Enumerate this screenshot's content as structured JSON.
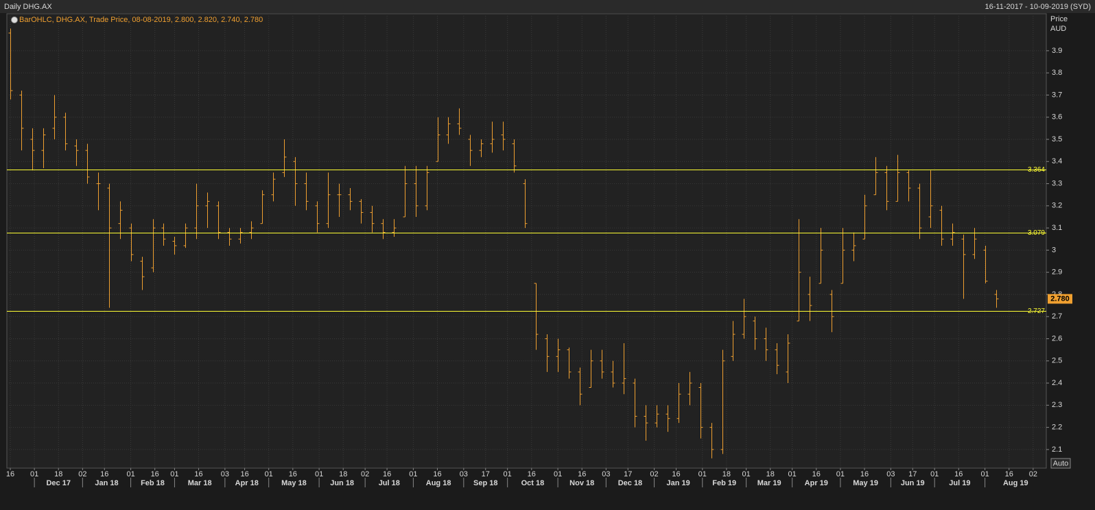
{
  "chart_data": {
    "type": "ohlc",
    "title": "Daily DHG.AX",
    "range_label": "16-11-2017 - 10-09-2019 (SYD)",
    "legend": "BarOHLC, DHG.AX, Trade Price, 08-08-2019, 2.800, 2.820, 2.740, 2.780",
    "ylabel": [
      "Price",
      "AUD"
    ],
    "button": "Auto",
    "color": "#f0a030",
    "ylim": [
      2.016,
      4.067
    ],
    "yticks": [
      2.1,
      2.2,
      2.3,
      2.4,
      2.5,
      2.6,
      2.7,
      2.8,
      2.9,
      3,
      3.1,
      3.2,
      3.3,
      3.4,
      3.5,
      3.6,
      3.7,
      3.8,
      3.9
    ],
    "grid": true,
    "xlim": [
      "16-11-2017",
      "10-09-2019"
    ],
    "xticks": [
      {
        "value": "16-11-2017",
        "label": "16"
      },
      {
        "value": "01-12-2017",
        "label": "01"
      },
      {
        "value": "18-12-2017",
        "label": "18"
      },
      {
        "value": "02-01-2018",
        "label": "02"
      },
      {
        "value": "16-01-2018",
        "label": "16"
      },
      {
        "value": "01-02-2018",
        "label": "01"
      },
      {
        "value": "16-02-2018",
        "label": "16"
      },
      {
        "value": "01-03-2018",
        "label": "01"
      },
      {
        "value": "16-03-2018",
        "label": "16"
      },
      {
        "value": "03-04-2018",
        "label": "03"
      },
      {
        "value": "16-04-2018",
        "label": "16"
      },
      {
        "value": "01-05-2018",
        "label": "01"
      },
      {
        "value": "16-05-2018",
        "label": "16"
      },
      {
        "value": "01-06-2018",
        "label": "01"
      },
      {
        "value": "18-06-2018",
        "label": "18"
      },
      {
        "value": "02-07-2018",
        "label": "02"
      },
      {
        "value": "16-07-2018",
        "label": "16"
      },
      {
        "value": "01-08-2018",
        "label": "01"
      },
      {
        "value": "16-08-2018",
        "label": "16"
      },
      {
        "value": "03-09-2018",
        "label": "03"
      },
      {
        "value": "17-09-2018",
        "label": "17"
      },
      {
        "value": "01-10-2018",
        "label": "01"
      },
      {
        "value": "16-10-2018",
        "label": "16"
      },
      {
        "value": "01-11-2018",
        "label": "01"
      },
      {
        "value": "16-11-2018",
        "label": "16"
      },
      {
        "value": "03-12-2018",
        "label": "03"
      },
      {
        "value": "17-12-2018",
        "label": "17"
      },
      {
        "value": "02-01-2019",
        "label": "02"
      },
      {
        "value": "16-01-2019",
        "label": "16"
      },
      {
        "value": "01-02-2019",
        "label": "01"
      },
      {
        "value": "18-02-2019",
        "label": "18"
      },
      {
        "value": "01-03-2019",
        "label": "01"
      },
      {
        "value": "18-03-2019",
        "label": "18"
      },
      {
        "value": "01-04-2019",
        "label": "01"
      },
      {
        "value": "16-04-2019",
        "label": "16"
      },
      {
        "value": "01-05-2019",
        "label": "01"
      },
      {
        "value": "16-05-2019",
        "label": "16"
      },
      {
        "value": "03-06-2019",
        "label": "03"
      },
      {
        "value": "17-06-2019",
        "label": "17"
      },
      {
        "value": "01-07-2019",
        "label": "01"
      },
      {
        "value": "16-07-2019",
        "label": "16"
      },
      {
        "value": "01-08-2019",
        "label": "01"
      },
      {
        "value": "16-08-2019",
        "label": "16"
      },
      {
        "value": "02-09-2019",
        "label": "02"
      }
    ],
    "month_ticks": [
      {
        "value": "01-12-2017",
        "label": "Dec 17"
      },
      {
        "value": "02-01-2018",
        "label": "Jan 18"
      },
      {
        "value": "01-02-2018",
        "label": "Feb 18"
      },
      {
        "value": "01-03-2018",
        "label": "Mar 18"
      },
      {
        "value": "03-04-2018",
        "label": "Apr 18"
      },
      {
        "value": "01-05-2018",
        "label": "May 18"
      },
      {
        "value": "01-06-2018",
        "label": "Jun 18"
      },
      {
        "value": "02-07-2018",
        "label": "Jul 18"
      },
      {
        "value": "01-08-2018",
        "label": "Aug 18"
      },
      {
        "value": "03-09-2018",
        "label": "Sep 18"
      },
      {
        "value": "01-10-2018",
        "label": "Oct 18"
      },
      {
        "value": "01-11-2018",
        "label": "Nov 18"
      },
      {
        "value": "03-12-2018",
        "label": "Dec 18"
      },
      {
        "value": "02-01-2019",
        "label": "Jan 19"
      },
      {
        "value": "01-02-2019",
        "label": "Feb 19"
      },
      {
        "value": "01-03-2019",
        "label": "Mar 19"
      },
      {
        "value": "01-04-2019",
        "label": "Apr 19"
      },
      {
        "value": "01-05-2019",
        "label": "May 19"
      },
      {
        "value": "03-06-2019",
        "label": "Jun 19"
      },
      {
        "value": "01-07-2019",
        "label": "Jul 19"
      },
      {
        "value": "01-08-2019",
        "label": "Aug 19"
      }
    ],
    "hlines": [
      {
        "value": 3.364,
        "color": "#ffff33"
      },
      {
        "value": 3.079,
        "color": "#ffff33"
      },
      {
        "value": 2.727,
        "color": "#ffff33"
      }
    ],
    "last_price": {
      "value": 2.78,
      "label": "2.780"
    },
    "x": [
      "16-11-2017",
      "23-11-2017",
      "30-11-2017",
      "07-12-2017",
      "14-12-2017",
      "21-12-2017",
      "28-12-2017",
      "04-01-2018",
      "11-01-2018",
      "18-01-2018",
      "25-01-2018",
      "01-02-2018",
      "08-02-2018",
      "15-02-2018",
      "22-02-2018",
      "01-03-2018",
      "08-03-2018",
      "15-03-2018",
      "22-03-2018",
      "29-03-2018",
      "05-04-2018",
      "12-04-2018",
      "19-04-2018",
      "26-04-2018",
      "03-05-2018",
      "10-05-2018",
      "17-05-2018",
      "24-05-2018",
      "31-05-2018",
      "07-06-2018",
      "14-06-2018",
      "21-06-2018",
      "28-06-2018",
      "05-07-2018",
      "12-07-2018",
      "19-07-2018",
      "26-07-2018",
      "02-08-2018",
      "09-08-2018",
      "16-08-2018",
      "23-08-2018",
      "30-08-2018",
      "06-09-2018",
      "13-09-2018",
      "20-09-2018",
      "27-09-2018",
      "04-10-2018",
      "11-10-2018",
      "18-10-2018",
      "25-10-2018",
      "01-11-2018",
      "08-11-2018",
      "15-11-2018",
      "22-11-2018",
      "29-11-2018",
      "06-12-2018",
      "13-12-2018",
      "20-12-2018",
      "27-12-2018",
      "03-01-2019",
      "10-01-2019",
      "17-01-2019",
      "24-01-2019",
      "31-01-2019",
      "07-02-2019",
      "14-02-2019",
      "21-02-2019",
      "28-02-2019",
      "07-03-2019",
      "14-03-2019",
      "21-03-2019",
      "28-03-2019",
      "04-04-2019",
      "11-04-2019",
      "18-04-2019",
      "25-04-2019",
      "02-05-2019",
      "09-05-2019",
      "16-05-2019",
      "23-05-2019",
      "30-05-2019",
      "06-06-2019",
      "13-06-2019",
      "20-06-2019",
      "27-06-2019",
      "04-07-2019",
      "11-07-2019",
      "18-07-2019",
      "25-07-2019",
      "01-08-2019",
      "08-08-2019"
    ],
    "open": [
      3.98,
      3.7,
      3.5,
      3.45,
      3.55,
      3.6,
      3.47,
      3.45,
      3.3,
      3.28,
      3.12,
      3.1,
      2.95,
      2.92,
      3.1,
      3.04,
      3.02,
      3.1,
      3.2,
      3.2,
      3.08,
      3.05,
      3.08,
      3.12,
      3.25,
      3.35,
      3.4,
      3.3,
      3.2,
      3.12,
      3.25,
      3.25,
      3.22,
      3.17,
      3.12,
      3.08,
      3.15,
      3.3,
      3.2,
      3.4,
      3.52,
      3.57,
      3.5,
      3.45,
      3.48,
      3.52,
      3.48,
      3.3,
      2.85,
      2.6,
      2.52,
      2.55,
      2.45,
      2.38,
      2.5,
      2.45,
      2.4,
      2.4,
      2.25,
      2.22,
      2.26,
      2.24,
      2.35,
      2.38,
      2.2,
      2.1,
      2.52,
      2.62,
      2.68,
      2.6,
      2.55,
      2.45,
      2.68,
      2.8,
      2.85,
      2.8,
      2.85,
      3.0,
      3.05,
      3.25,
      3.35,
      3.22,
      3.35,
      3.28,
      3.15,
      3.18,
      3.05,
      3.05,
      2.98,
      3.0,
      2.8
    ],
    "high": [
      4.0,
      3.72,
      3.55,
      3.55,
      3.7,
      3.62,
      3.5,
      3.48,
      3.35,
      3.3,
      3.22,
      3.12,
      2.97,
      3.14,
      3.12,
      3.06,
      3.12,
      3.3,
      3.26,
      3.22,
      3.1,
      3.1,
      3.13,
      3.27,
      3.35,
      3.5,
      3.42,
      3.35,
      3.22,
      3.35,
      3.3,
      3.28,
      3.23,
      3.2,
      3.14,
      3.14,
      3.38,
      3.38,
      3.38,
      3.6,
      3.6,
      3.64,
      3.52,
      3.5,
      3.58,
      3.58,
      3.5,
      3.32,
      2.85,
      2.62,
      2.6,
      2.56,
      2.47,
      2.55,
      2.55,
      2.5,
      2.58,
      2.42,
      2.3,
      2.3,
      2.3,
      2.4,
      2.45,
      2.4,
      2.22,
      2.55,
      2.68,
      2.78,
      2.7,
      2.65,
      2.58,
      2.62,
      3.14,
      2.88,
      3.1,
      2.82,
      3.1,
      3.08,
      3.25,
      3.42,
      3.38,
      3.43,
      3.36,
      3.3,
      3.36,
      3.2,
      3.12,
      3.07,
      3.1,
      3.02,
      2.82
    ],
    "low": [
      3.68,
      3.45,
      3.36,
      3.37,
      3.5,
      3.45,
      3.38,
      3.3,
      3.18,
      2.74,
      3.05,
      2.95,
      2.82,
      2.9,
      3.02,
      2.98,
      3.01,
      3.05,
      3.1,
      3.05,
      3.02,
      3.03,
      3.05,
      3.12,
      3.22,
      3.33,
      3.2,
      3.18,
      3.08,
      3.1,
      3.15,
      3.18,
      3.12,
      3.08,
      3.05,
      3.06,
      3.15,
      3.15,
      3.18,
      3.4,
      3.48,
      3.52,
      3.38,
      3.42,
      3.44,
      3.45,
      3.35,
      3.1,
      2.55,
      2.45,
      2.45,
      2.42,
      2.3,
      2.38,
      2.42,
      2.38,
      2.35,
      2.2,
      2.14,
      2.2,
      2.18,
      2.22,
      2.3,
      2.15,
      2.06,
      2.08,
      2.5,
      2.6,
      2.55,
      2.5,
      2.44,
      2.4,
      2.68,
      2.68,
      2.85,
      2.63,
      2.85,
      2.95,
      3.05,
      3.25,
      3.18,
      3.22,
      3.22,
      3.05,
      3.1,
      3.02,
      3.02,
      2.78,
      2.96,
      2.85,
      2.74
    ],
    "close": [
      3.72,
      3.55,
      3.45,
      3.52,
      3.6,
      3.48,
      3.45,
      3.33,
      3.3,
      3.1,
      3.18,
      2.98,
      2.88,
      3.1,
      3.05,
      3.02,
      3.1,
      3.2,
      3.22,
      3.08,
      3.05,
      3.08,
      3.1,
      3.25,
      3.32,
      3.42,
      3.3,
      3.22,
      3.12,
      3.25,
      3.25,
      3.22,
      3.17,
      3.12,
      3.08,
      3.1,
      3.3,
      3.2,
      3.35,
      3.52,
      3.57,
      3.55,
      3.45,
      3.48,
      3.5,
      3.5,
      3.38,
      3.12,
      2.62,
      2.52,
      2.55,
      2.45,
      2.35,
      2.5,
      2.45,
      2.4,
      2.42,
      2.25,
      2.22,
      2.26,
      2.24,
      2.35,
      2.4,
      2.2,
      2.1,
      2.5,
      2.62,
      2.7,
      2.6,
      2.55,
      2.48,
      2.58,
      2.9,
      2.75,
      3.0,
      2.7,
      3.0,
      3.02,
      3.2,
      3.35,
      3.22,
      3.35,
      3.28,
      3.1,
      3.2,
      3.05,
      3.08,
      2.98,
      3.05,
      2.86,
      2.78
    ]
  }
}
